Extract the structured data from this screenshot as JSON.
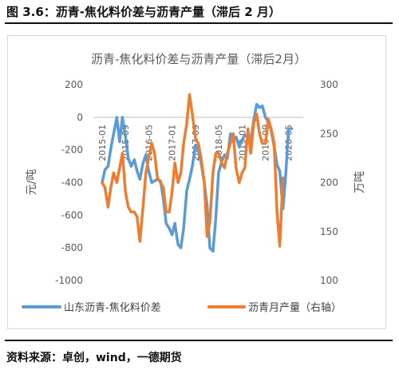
{
  "figure": {
    "caption": "图 3.6：沥青-焦化料价差与沥青产量（滞后 2 月）",
    "source": "资料来源：卓创，wind，一德期货"
  },
  "chart_data": {
    "type": "line",
    "title": "沥青-焦化料价差与沥青产量（滞后2月）",
    "ylabel": "元/吨",
    "y2label": "万吨",
    "ylim": [
      -1000,
      200
    ],
    "y2lim": [
      100,
      300
    ],
    "yticks": [
      "200",
      "0",
      "-200",
      "-400",
      "-600",
      "-800",
      "-1000"
    ],
    "y2ticks": [
      "300",
      "250",
      "200",
      "150",
      "100"
    ],
    "x_labels": [
      "2015-01",
      "2015-09",
      "2016-05",
      "2017-01",
      "2017-09",
      "2018-05",
      "2019-01",
      "2019-09",
      "2020-05"
    ],
    "x_range": [
      2014.75,
      2020.75
    ],
    "legend_position": "bottom",
    "series": [
      {
        "name": "山东沥青-焦化料价差",
        "axis": "left",
        "color": "#5b9bd5",
        "points": [
          [
            2015.0,
            -400
          ],
          [
            2015.08,
            -320
          ],
          [
            2015.17,
            -300
          ],
          [
            2015.25,
            -190
          ],
          [
            2015.33,
            -100
          ],
          [
            2015.42,
            0
          ],
          [
            2015.5,
            -150
          ],
          [
            2015.58,
            0
          ],
          [
            2015.67,
            -120
          ],
          [
            2015.75,
            -250
          ],
          [
            2015.83,
            -300
          ],
          [
            2015.92,
            -260
          ],
          [
            2016.0,
            -330
          ],
          [
            2016.08,
            -380
          ],
          [
            2016.17,
            -280
          ],
          [
            2016.25,
            -230
          ],
          [
            2016.33,
            -330
          ],
          [
            2016.42,
            -400
          ],
          [
            2016.5,
            -390
          ],
          [
            2016.58,
            -380
          ],
          [
            2016.67,
            -390
          ],
          [
            2016.75,
            -500
          ],
          [
            2016.83,
            -650
          ],
          [
            2016.92,
            -680
          ],
          [
            2017.0,
            -720
          ],
          [
            2017.08,
            -650
          ],
          [
            2017.17,
            -780
          ],
          [
            2017.25,
            -800
          ],
          [
            2017.33,
            -680
          ],
          [
            2017.42,
            -450
          ],
          [
            2017.5,
            -380
          ],
          [
            2017.58,
            -300
          ],
          [
            2017.67,
            -170
          ],
          [
            2017.75,
            -200
          ],
          [
            2017.83,
            -280
          ],
          [
            2017.92,
            -400
          ],
          [
            2018.0,
            -540
          ],
          [
            2018.08,
            -800
          ],
          [
            2018.17,
            -820
          ],
          [
            2018.25,
            -620
          ],
          [
            2018.33,
            -340
          ],
          [
            2018.42,
            -270
          ],
          [
            2018.5,
            -230
          ],
          [
            2018.58,
            -250
          ],
          [
            2018.67,
            -100
          ],
          [
            2018.75,
            -150
          ],
          [
            2018.83,
            -120
          ],
          [
            2018.92,
            -180
          ],
          [
            2019.0,
            -140
          ],
          [
            2019.08,
            -110
          ],
          [
            2019.17,
            -120
          ],
          [
            2019.25,
            -150
          ],
          [
            2019.33,
            -20
          ],
          [
            2019.42,
            80
          ],
          [
            2019.5,
            60
          ],
          [
            2019.58,
            70
          ],
          [
            2019.67,
            0
          ],
          [
            2019.75,
            -30
          ],
          [
            2019.83,
            -80
          ],
          [
            2019.92,
            -180
          ],
          [
            2020.0,
            -290
          ],
          [
            2020.08,
            -330
          ],
          [
            2020.17,
            -560
          ],
          [
            2020.25,
            -350
          ],
          [
            2020.33,
            -70
          ],
          [
            2020.42,
            -70
          ]
        ]
      },
      {
        "name": "沥青月产量（右轴）",
        "axis": "right",
        "color": "#ed7d31",
        "points": [
          [
            2015.0,
            200
          ],
          [
            2015.08,
            195
          ],
          [
            2015.17,
            175
          ],
          [
            2015.25,
            195
          ],
          [
            2015.33,
            210
          ],
          [
            2015.42,
            200
          ],
          [
            2015.5,
            215
          ],
          [
            2015.58,
            230
          ],
          [
            2015.67,
            190
          ],
          [
            2015.75,
            175
          ],
          [
            2015.83,
            170
          ],
          [
            2015.92,
            170
          ],
          [
            2016.0,
            165
          ],
          [
            2016.08,
            140
          ],
          [
            2016.17,
            175
          ],
          [
            2016.25,
            210
          ],
          [
            2016.33,
            225
          ],
          [
            2016.42,
            240
          ],
          [
            2016.5,
            230
          ],
          [
            2016.58,
            205
          ],
          [
            2016.67,
            200
          ],
          [
            2016.75,
            195
          ],
          [
            2016.83,
            170
          ],
          [
            2016.92,
            170
          ],
          [
            2017.0,
            190
          ],
          [
            2017.08,
            220
          ],
          [
            2017.17,
            200
          ],
          [
            2017.25,
            210
          ],
          [
            2017.33,
            240
          ],
          [
            2017.42,
            260
          ],
          [
            2017.5,
            290
          ],
          [
            2017.58,
            270
          ],
          [
            2017.67,
            245
          ],
          [
            2017.75,
            240
          ],
          [
            2017.83,
            225
          ],
          [
            2017.92,
            200
          ],
          [
            2018.0,
            145
          ],
          [
            2018.08,
            160
          ],
          [
            2018.17,
            210
          ],
          [
            2018.25,
            230
          ],
          [
            2018.33,
            230
          ],
          [
            2018.42,
            220
          ],
          [
            2018.5,
            215
          ],
          [
            2018.58,
            230
          ],
          [
            2018.67,
            240
          ],
          [
            2018.75,
            250
          ],
          [
            2018.83,
            215
          ],
          [
            2018.92,
            200
          ],
          [
            2019.0,
            210
          ],
          [
            2019.08,
            215
          ],
          [
            2019.17,
            255
          ],
          [
            2019.25,
            230
          ],
          [
            2019.33,
            260
          ],
          [
            2019.42,
            270
          ],
          [
            2019.5,
            250
          ],
          [
            2019.58,
            240
          ],
          [
            2019.67,
            240
          ],
          [
            2019.75,
            265
          ],
          [
            2019.83,
            255
          ],
          [
            2019.92,
            240
          ],
          [
            2020.0,
            170
          ],
          [
            2020.08,
            135
          ],
          [
            2020.17,
            205
          ]
        ]
      }
    ]
  }
}
